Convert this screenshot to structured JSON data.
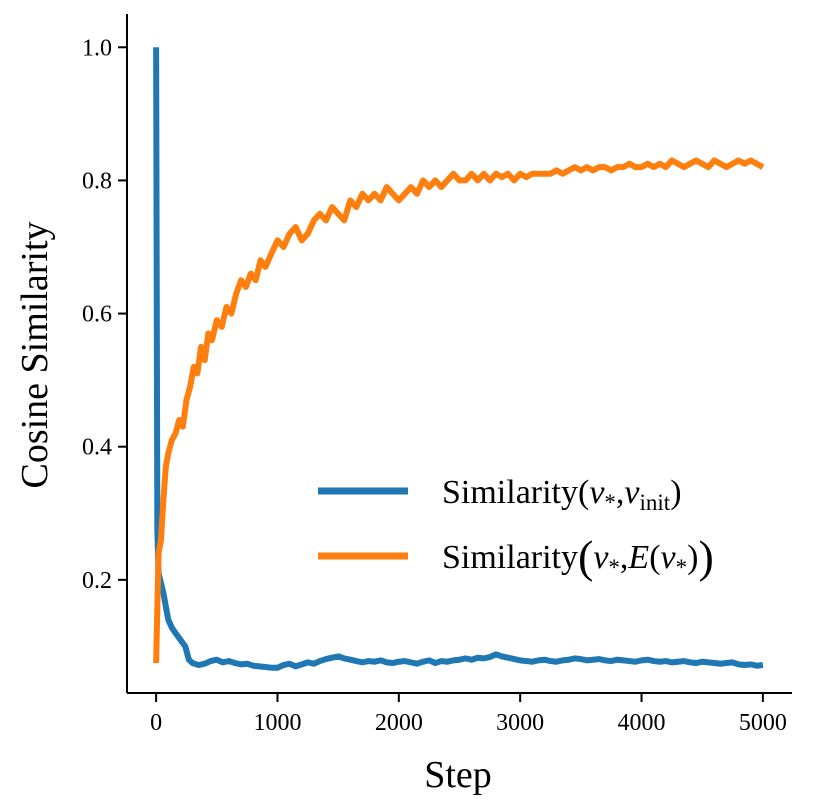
{
  "chart_data": {
    "type": "line",
    "title": "",
    "xlabel": "Step",
    "ylabel": "Cosine Similarity",
    "xlim": [
      -240,
      5240
    ],
    "ylim": [
      0.03,
      1.05
    ],
    "xticks": [
      0,
      1000,
      2000,
      3000,
      4000,
      5000
    ],
    "xtick_labels": [
      "0",
      "1000",
      "2000",
      "3000",
      "4000",
      "5000"
    ],
    "yticks": [
      0.2,
      0.4,
      0.6,
      0.8,
      1.0
    ],
    "ytick_labels": [
      "0.2",
      "0.4",
      "0.6",
      "0.8",
      "1.0"
    ],
    "grid": false,
    "legend_position": "center-right",
    "series": [
      {
        "name": "Similarity(v*,vinit)",
        "legend_main": "Similarity(",
        "legend_var1": "v",
        "legend_sub1": "*",
        "legend_comma": ",",
        "legend_var2": "v",
        "legend_sub2": "init",
        "legend_close": ")",
        "color": "#1f77b4",
        "x": [
          0,
          10,
          20,
          40,
          60,
          80,
          100,
          130,
          160,
          200,
          240,
          270,
          300,
          350,
          400,
          450,
          500,
          550,
          600,
          650,
          700,
          750,
          800,
          850,
          900,
          950,
          1000,
          1050,
          1100,
          1150,
          1200,
          1250,
          1300,
          1350,
          1400,
          1450,
          1500,
          1550,
          1600,
          1650,
          1700,
          1750,
          1800,
          1850,
          1900,
          1950,
          2000,
          2050,
          2100,
          2150,
          2200,
          2250,
          2300,
          2350,
          2400,
          2450,
          2500,
          2550,
          2600,
          2650,
          2700,
          2750,
          2800,
          2850,
          2900,
          2950,
          3000,
          3050,
          3100,
          3150,
          3200,
          3250,
          3300,
          3350,
          3400,
          3450,
          3500,
          3550,
          3600,
          3650,
          3700,
          3750,
          3800,
          3850,
          3900,
          3950,
          4000,
          4050,
          4100,
          4150,
          4200,
          4250,
          4300,
          4350,
          4400,
          4450,
          4500,
          4550,
          4600,
          4650,
          4700,
          4750,
          4800,
          4850,
          4900,
          4950,
          5000
        ],
        "values": [
          1.0,
          0.275,
          0.21,
          0.195,
          0.18,
          0.16,
          0.14,
          0.128,
          0.12,
          0.11,
          0.1,
          0.08,
          0.075,
          0.072,
          0.074,
          0.078,
          0.08,
          0.076,
          0.078,
          0.075,
          0.073,
          0.074,
          0.071,
          0.07,
          0.069,
          0.068,
          0.068,
          0.072,
          0.074,
          0.07,
          0.073,
          0.076,
          0.074,
          0.078,
          0.081,
          0.083,
          0.085,
          0.082,
          0.08,
          0.078,
          0.076,
          0.078,
          0.077,
          0.079,
          0.076,
          0.075,
          0.077,
          0.078,
          0.076,
          0.074,
          0.077,
          0.079,
          0.075,
          0.078,
          0.077,
          0.079,
          0.08,
          0.082,
          0.08,
          0.083,
          0.082,
          0.084,
          0.088,
          0.085,
          0.083,
          0.081,
          0.079,
          0.078,
          0.077,
          0.079,
          0.08,
          0.078,
          0.077,
          0.079,
          0.08,
          0.082,
          0.081,
          0.079,
          0.08,
          0.081,
          0.079,
          0.078,
          0.08,
          0.079,
          0.078,
          0.077,
          0.079,
          0.08,
          0.078,
          0.077,
          0.078,
          0.076,
          0.077,
          0.078,
          0.076,
          0.075,
          0.077,
          0.076,
          0.075,
          0.074,
          0.075,
          0.076,
          0.073,
          0.072,
          0.073,
          0.071,
          0.072
        ]
      },
      {
        "name": "Similarity(v*,E(v*))",
        "legend_main": "Similarity",
        "legend_var1": "v",
        "legend_sub1": "*",
        "legend_comma": ",",
        "legend_func": "E",
        "legend_var2": "v",
        "legend_sub2": "*",
        "legend_open": "(",
        "legend_close": ")",
        "color": "#ff7f0e",
        "x": [
          0,
          20,
          40,
          60,
          80,
          100,
          130,
          160,
          190,
          220,
          250,
          280,
          310,
          340,
          370,
          400,
          430,
          460,
          500,
          540,
          580,
          620,
          660,
          700,
          740,
          780,
          820,
          860,
          900,
          950,
          1000,
          1050,
          1100,
          1150,
          1200,
          1250,
          1300,
          1350,
          1400,
          1450,
          1500,
          1550,
          1600,
          1650,
          1700,
          1750,
          1800,
          1850,
          1900,
          1950,
          2000,
          2050,
          2100,
          2150,
          2200,
          2250,
          2300,
          2350,
          2400,
          2450,
          2500,
          2550,
          2600,
          2650,
          2700,
          2750,
          2800,
          2850,
          2900,
          2950,
          3000,
          3050,
          3100,
          3150,
          3200,
          3250,
          3300,
          3350,
          3400,
          3450,
          3500,
          3550,
          3600,
          3650,
          3700,
          3750,
          3800,
          3850,
          3900,
          3950,
          4000,
          4050,
          4100,
          4150,
          4200,
          4250,
          4300,
          4350,
          4400,
          4450,
          4500,
          4550,
          4600,
          4650,
          4700,
          4750,
          4800,
          4850,
          4900,
          4950,
          5000
        ],
        "values": [
          0.075,
          0.24,
          0.26,
          0.32,
          0.37,
          0.39,
          0.41,
          0.42,
          0.44,
          0.43,
          0.47,
          0.49,
          0.52,
          0.51,
          0.55,
          0.53,
          0.57,
          0.56,
          0.59,
          0.58,
          0.61,
          0.6,
          0.63,
          0.65,
          0.64,
          0.66,
          0.65,
          0.68,
          0.67,
          0.69,
          0.71,
          0.7,
          0.72,
          0.73,
          0.71,
          0.72,
          0.74,
          0.75,
          0.74,
          0.76,
          0.75,
          0.74,
          0.77,
          0.76,
          0.78,
          0.77,
          0.78,
          0.77,
          0.79,
          0.78,
          0.77,
          0.78,
          0.79,
          0.78,
          0.8,
          0.79,
          0.8,
          0.79,
          0.8,
          0.81,
          0.8,
          0.8,
          0.81,
          0.8,
          0.81,
          0.8,
          0.81,
          0.805,
          0.81,
          0.8,
          0.81,
          0.805,
          0.81,
          0.81,
          0.81,
          0.81,
          0.815,
          0.81,
          0.815,
          0.82,
          0.815,
          0.82,
          0.815,
          0.82,
          0.82,
          0.815,
          0.82,
          0.82,
          0.825,
          0.82,
          0.82,
          0.825,
          0.82,
          0.825,
          0.82,
          0.83,
          0.825,
          0.82,
          0.825,
          0.83,
          0.825,
          0.82,
          0.83,
          0.825,
          0.82,
          0.825,
          0.83,
          0.825,
          0.83,
          0.825,
          0.82
        ]
      }
    ]
  }
}
